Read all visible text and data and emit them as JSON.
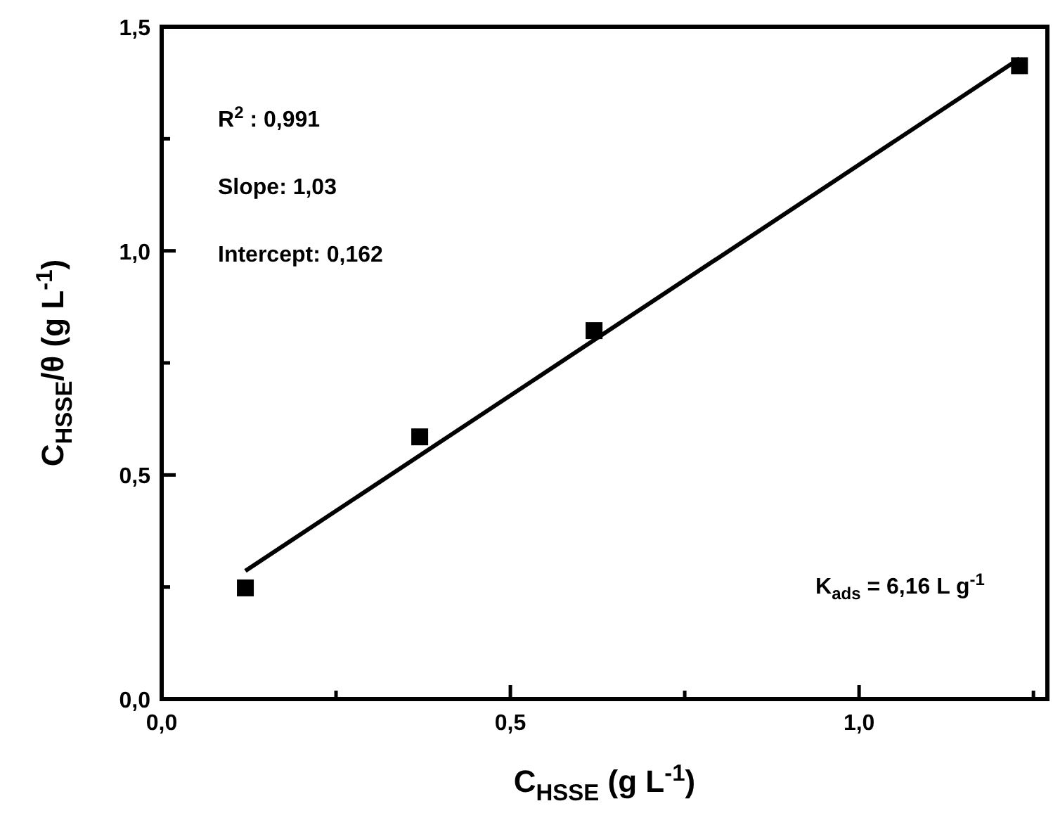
{
  "chart_data": {
    "type": "scatter",
    "xlabel": "C$_{HSSE}$ (g L$^{-1}$)",
    "ylabel": "C$_{HSSE}$/θ (g L$^{-1}$)",
    "x": [
      0.12,
      0.37,
      0.62,
      1.23
    ],
    "marker": "square",
    "series": [
      {
        "color": "#000000",
        "values": [
          0.248,
          0.585,
          0.822,
          1.413
        ]
      },
      {
        "type": "line",
        "color": "#000000",
        "x": [
          0.12,
          1.23
        ],
        "values": [
          0.286,
          1.429
        ],
        "marker": "none",
        "line_style": "solid"
      }
    ],
    "xlim": [
      0,
      1.27
    ],
    "ylim": [
      0,
      1.5
    ],
    "xticks": [
      {
        "value": 0,
        "label": "0,0"
      },
      {
        "value": 0.25,
        "label": null
      },
      {
        "value": 0.5,
        "label": "0,5"
      },
      {
        "value": 0.75,
        "label": null
      },
      {
        "value": 1,
        "label": "1,0"
      },
      {
        "value": 1.25,
        "label": null
      }
    ],
    "yticks": [
      {
        "value": 0,
        "label": "0,0"
      },
      {
        "value": 0.25,
        "label": null
      },
      {
        "value": 0.5,
        "label": "0,5"
      },
      {
        "value": 0.75,
        "label": null
      },
      {
        "value": 1,
        "label": "1,0"
      },
      {
        "value": 1.25,
        "label": null
      },
      {
        "value": 1.5,
        "label": "1,5"
      }
    ],
    "annotations": [
      "R$^{2}$ : 0,991",
      "Slope: 1,03",
      "Intercept: 0,162",
      "K$_{ads}$ = 6,16 L g$^{-1}$"
    ],
    "grid": false
  }
}
